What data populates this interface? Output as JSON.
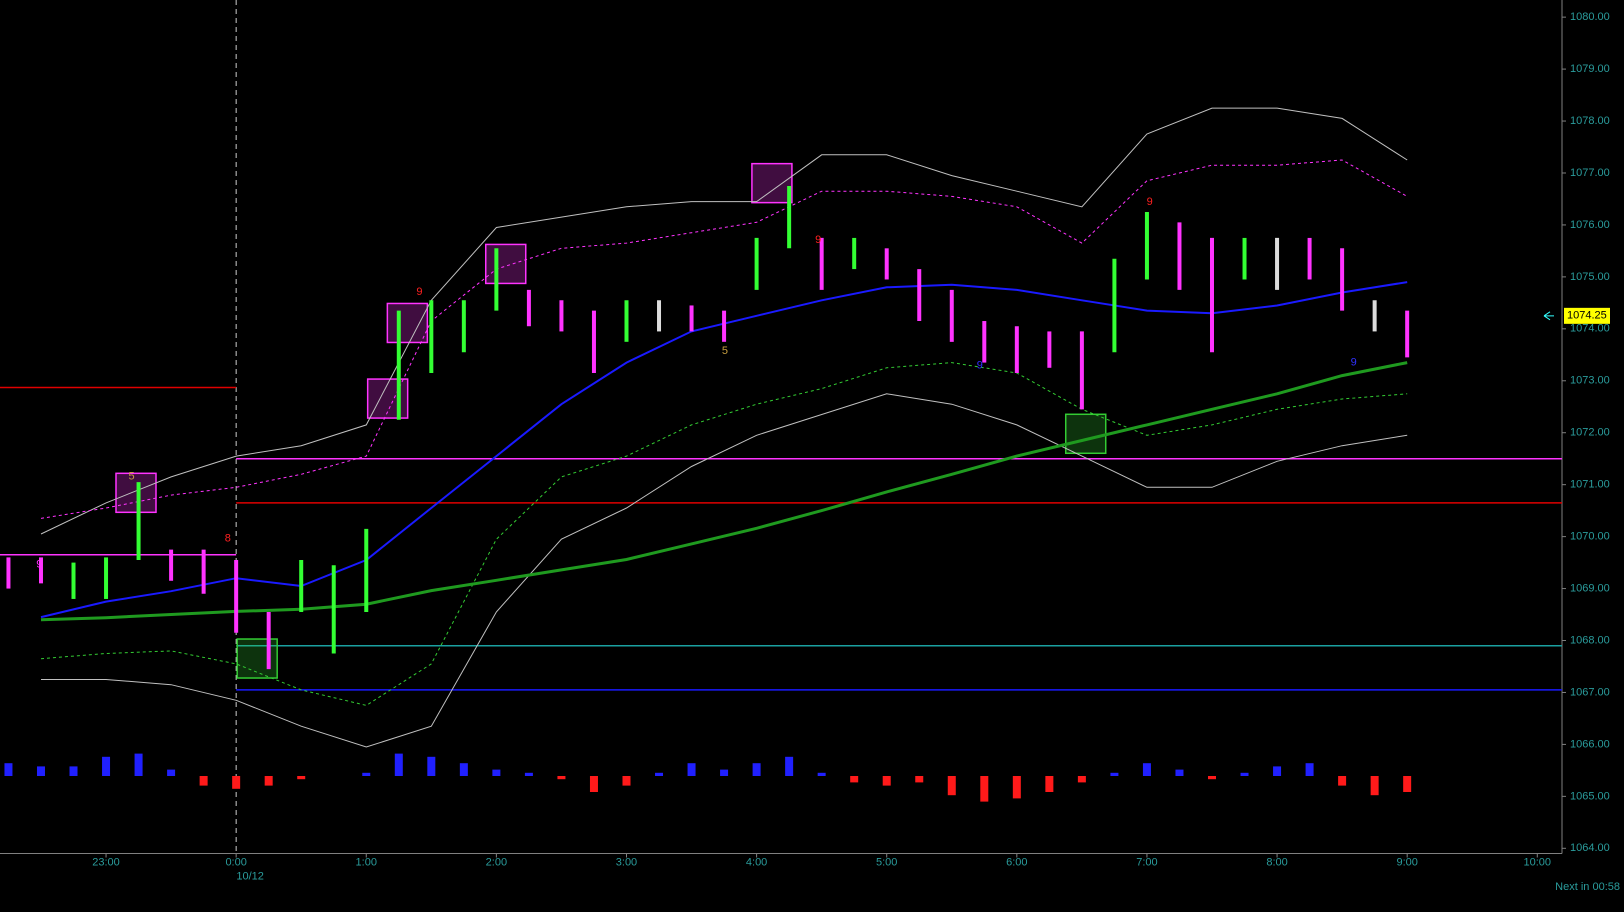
{
  "chart_data": {
    "type": "ohlc",
    "xlim": [
      -1.815,
      10.19
    ],
    "ylim": [
      1063.9,
      1080.33
    ],
    "yticks": [
      {
        "value": 1064,
        "label": "1064.00"
      },
      {
        "value": 1065,
        "label": "1065.00"
      },
      {
        "value": 1066,
        "label": "1066.00"
      },
      {
        "value": 1067,
        "label": "1067.00"
      },
      {
        "value": 1068,
        "label": "1068.00"
      },
      {
        "value": 1069,
        "label": "1069.00"
      },
      {
        "value": 1070,
        "label": "1070.00"
      },
      {
        "value": 1071,
        "label": "1071.00"
      },
      {
        "value": 1072,
        "label": "1072.00"
      },
      {
        "value": 1073,
        "label": "1073.00"
      },
      {
        "value": 1074,
        "label": "1074.00"
      },
      {
        "value": 1075,
        "label": "1075.00"
      },
      {
        "value": 1076,
        "label": "1076.00"
      },
      {
        "value": 1077,
        "label": "1077.00"
      },
      {
        "value": 1078,
        "label": "1078.00"
      },
      {
        "value": 1079,
        "label": "1079.00"
      },
      {
        "value": 1080,
        "label": "1080.00"
      }
    ],
    "xticks": [
      {
        "value": -1,
        "label": "23:00"
      },
      {
        "value": 0,
        "label": "0:00"
      },
      {
        "value": 1,
        "label": "1:00"
      },
      {
        "value": 2,
        "label": "2:00"
      },
      {
        "value": 3,
        "label": "3:00"
      },
      {
        "value": 4,
        "label": "4:00"
      },
      {
        "value": 5,
        "label": "5:00"
      },
      {
        "value": 6,
        "label": "6:00"
      },
      {
        "value": 7,
        "label": "7:00"
      },
      {
        "value": 8,
        "label": "8:00"
      },
      {
        "value": 9,
        "label": "9:00"
      },
      {
        "value": 10,
        "label": "10:00"
      }
    ],
    "date_label": "10/12",
    "status": "Next in 00:58",
    "last_price": 1074.25,
    "bars": {
      "x": [
        -1.75,
        -1.5,
        -1.25,
        -1,
        -0.75,
        -0.5,
        -0.25,
        0,
        0.25,
        0.5,
        0.75,
        1,
        1.25,
        1.5,
        1.75,
        2,
        2.25,
        2.5,
        2.75,
        3,
        3.25,
        3.5,
        3.75,
        4,
        4.25,
        4.5,
        4.75,
        5,
        5.25,
        5.5,
        5.75,
        6,
        6.25,
        6.5,
        6.75,
        7,
        7.25,
        7.5,
        7.75,
        8,
        8.25,
        8.5,
        8.75,
        9
      ],
      "low": [
        1069,
        1069.1,
        1068.8,
        1068.8,
        1069.55,
        1069.15,
        1068.9,
        1068.15,
        1067.45,
        1068.55,
        1067.75,
        1068.55,
        1072.25,
        1073.15,
        1073.55,
        1074.35,
        1074.05,
        1073.95,
        1073.15,
        1073.75,
        1073.95,
        1073.95,
        1073.75,
        1074.75,
        1075.55,
        1074.75,
        1075.15,
        1074.95,
        1074.15,
        1073.75,
        1073.35,
        1073.15,
        1073.25,
        1072.45,
        1073.55,
        1074.95,
        1074.75,
        1073.55,
        1074.95,
        1074.75,
        1074.95,
        1074.35,
        1073.95,
        1073.45
      ],
      "high": [
        1069.6,
        1069.6,
        1069.5,
        1069.6,
        1071.05,
        1069.75,
        1069.75,
        1069.55,
        1068.55,
        1069.55,
        1069.45,
        1070.15,
        1074.35,
        1074.55,
        1074.55,
        1075.55,
        1074.75,
        1074.55,
        1074.35,
        1074.55,
        1074.55,
        1074.45,
        1074.35,
        1075.75,
        1076.75,
        1075.75,
        1075.75,
        1075.55,
        1075.15,
        1074.75,
        1074.15,
        1074.05,
        1073.95,
        1073.95,
        1075.35,
        1076.25,
        1076.05,
        1075.75,
        1075.75,
        1075.75,
        1075.75,
        1075.55,
        1074.55,
        1074.35
      ],
      "colors": [
        "#ff33ff",
        "#ff33ff",
        "#33ff33",
        "#33ff33",
        "#33ff33",
        "#ff33ff",
        "#ff33ff",
        "#ff33ff",
        "#ff33ff",
        "#33ff33",
        "#33ff33",
        "#33ff33",
        "#33ff33",
        "#33ff33",
        "#33ff33",
        "#33ff33",
        "#ff33ff",
        "#ff33ff",
        "#ff33ff",
        "#33ff33",
        "#dddddd",
        "#ff33ff",
        "#ff33ff",
        "#33ff33",
        "#33ff33",
        "#ff33ff",
        "#33ff33",
        "#ff33ff",
        "#ff33ff",
        "#ff33ff",
        "#ff33ff",
        "#ff33ff",
        "#ff33ff",
        "#ff33ff",
        "#33ff33",
        "#33ff33",
        "#ff33ff",
        "#ff33ff",
        "#33ff33",
        "#dddddd",
        "#ff33ff",
        "#ff33ff",
        "#dddddd",
        "#ff33ff"
      ]
    },
    "x": [
      -1.5,
      -1,
      -0.5,
      0,
      0.5,
      1,
      1.5,
      2,
      2.5,
      3,
      3.5,
      4,
      4.5,
      5,
      5.5,
      6,
      6.5,
      7,
      7.5,
      8,
      8.5,
      9
    ],
    "series": [
      {
        "color": "#c0c0c0",
        "width": 1,
        "dash": false,
        "values": [
          1070.05,
          1070.65,
          1071.15,
          1071.55,
          1071.75,
          1072.15,
          1074.55,
          1075.95,
          1076.15,
          1076.35,
          1076.45,
          1076.45,
          1077.35,
          1077.35,
          1076.95,
          1076.65,
          1076.35,
          1077.75,
          1078.25,
          1078.25,
          1078.05,
          1077.25
        ]
      },
      {
        "color": "#c0c0c0",
        "width": 1,
        "dash": false,
        "values": [
          1067.25,
          1067.25,
          1067.15,
          1066.85,
          1066.35,
          1065.95,
          1066.35,
          1068.55,
          1069.95,
          1070.55,
          1071.35,
          1071.95,
          1072.35,
          1072.75,
          1072.55,
          1072.15,
          1071.55,
          1070.95,
          1070.95,
          1071.45,
          1071.75,
          1071.95
        ]
      },
      {
        "color": "#ff33ff",
        "width": 1,
        "dash": true,
        "values": [
          1070.35,
          1070.55,
          1070.8,
          1070.95,
          1071.2,
          1071.55,
          1074.15,
          1075.15,
          1075.55,
          1075.65,
          1075.85,
          1076.05,
          1076.65,
          1076.65,
          1076.55,
          1076.35,
          1075.65,
          1076.85,
          1077.15,
          1077.15,
          1077.25,
          1076.55
        ]
      },
      {
        "color": "#33cc33",
        "width": 1,
        "dash": true,
        "values": [
          1067.65,
          1067.75,
          1067.8,
          1067.55,
          1067.05,
          1066.75,
          1067.55,
          1069.95,
          1071.15,
          1071.55,
          1072.15,
          1072.55,
          1072.85,
          1073.25,
          1073.35,
          1073.15,
          1072.45,
          1071.95,
          1072.15,
          1072.45,
          1072.65,
          1072.75
        ]
      },
      {
        "color": "#1a1aff",
        "width": 2,
        "dash": false,
        "values": [
          1068.45,
          1068.75,
          1068.95,
          1069.2,
          1069.05,
          1069.55,
          1070.55,
          1071.55,
          1072.55,
          1073.35,
          1073.95,
          1074.25,
          1074.55,
          1074.8,
          1074.85,
          1074.75,
          1074.55,
          1074.35,
          1074.3,
          1074.45,
          1074.7,
          1074.9
        ]
      },
      {
        "color": "#1f9a1f",
        "width": 3,
        "dash": false,
        "values": [
          1068.4,
          1068.44,
          1068.5,
          1068.56,
          1068.6,
          1068.7,
          1068.96,
          1069.16,
          1069.36,
          1069.56,
          1069.86,
          1070.16,
          1070.5,
          1070.86,
          1071.2,
          1071.55,
          1071.85,
          1072.15,
          1072.45,
          1072.75,
          1073.1,
          1073.35
        ]
      }
    ],
    "levels": [
      {
        "value": 1072.87,
        "color": "#e00000",
        "from": -1.815,
        "to": 0
      },
      {
        "value": 1069.65,
        "color": "#ff33ff",
        "from": -1.815,
        "to": 0
      },
      {
        "value": 1071.5,
        "color": "#ff33ff",
        "from": 0,
        "to": 10.19
      },
      {
        "value": 1070.65,
        "color": "#e00000",
        "from": 0,
        "to": 10.19
      },
      {
        "value": 1067.9,
        "color": "#1aa0a0",
        "from": 0,
        "to": 10.19
      },
      {
        "value": 1067.05,
        "color": "#1a1aff",
        "from": 0,
        "to": 10.19
      }
    ],
    "oscillator": {
      "ylim": [
        -1,
        1
      ],
      "pos_color": "#2020ff",
      "neg_color": "#ff1a1a",
      "values": [
        0.4,
        0.3,
        0.3,
        0.6,
        0.7,
        0.2,
        -0.3,
        -0.4,
        -0.3,
        -0.1,
        0,
        0.1,
        0.7,
        0.6,
        0.4,
        0.2,
        0.1,
        -0.1,
        -0.5,
        -0.3,
        0.1,
        0.4,
        0.2,
        0.4,
        0.6,
        0.1,
        -0.2,
        -0.3,
        -0.2,
        -0.6,
        -0.8,
        -0.7,
        -0.5,
        -0.2,
        0.1,
        0.4,
        0.2,
        -0.1,
        0.1,
        0.3,
        0.4,
        -0.3,
        -0.6,
        -0.5
      ]
    },
    "annotations": [
      {
        "text": "5",
        "color": "#c8a040"
      },
      {
        "text": "9",
        "color": "#ff33ff"
      },
      {
        "text": "8",
        "color": "#ff2020"
      },
      {
        "text": "9",
        "color": "#ff2020"
      },
      {
        "text": "9",
        "color": "#ff2020"
      },
      {
        "text": "5",
        "color": "#c8a040"
      },
      {
        "text": "9",
        "color": "#ff2020"
      },
      {
        "text": "9",
        "color": "#3030ff"
      },
      {
        "text": "9",
        "color": "#3030ff"
      }
    ]
  }
}
